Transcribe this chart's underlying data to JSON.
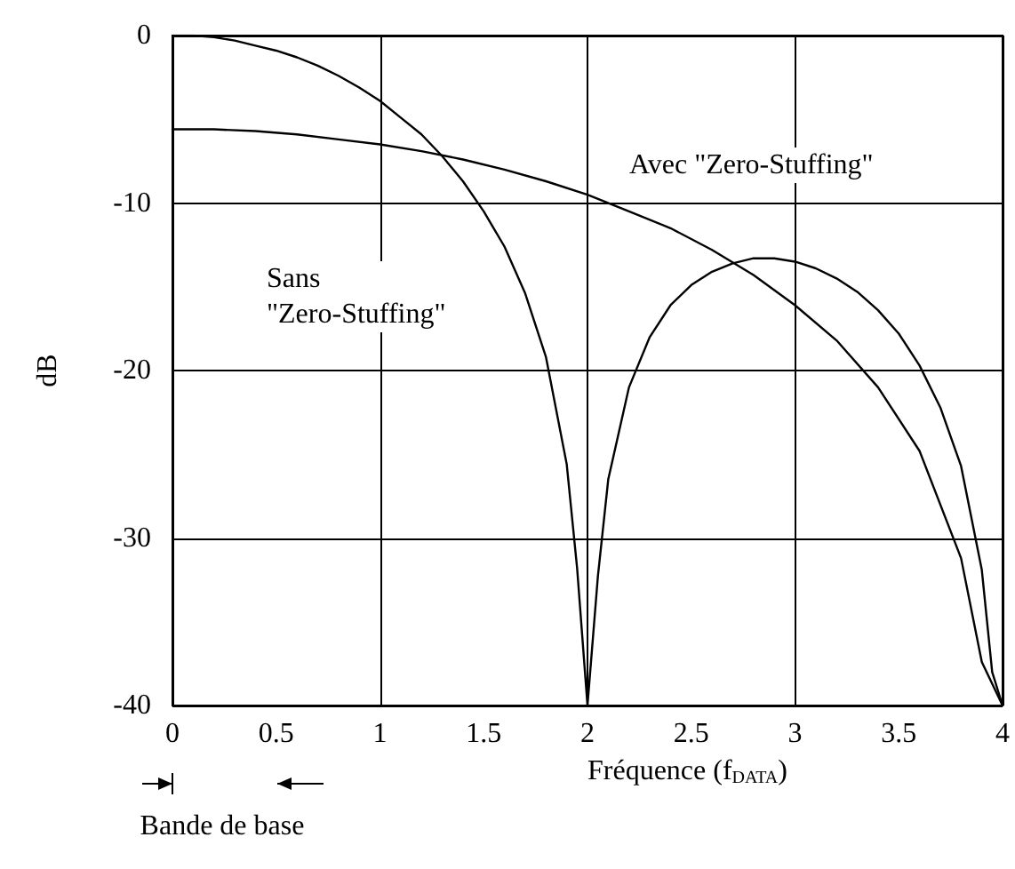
{
  "chart_data": {
    "type": "line",
    "xlabel": "Fréquence (f$_{DATA}$)",
    "ylabel": "dB",
    "xlim": [
      0,
      4
    ],
    "ylim": [
      -40,
      0
    ],
    "xticks": [
      0,
      0.5,
      1,
      1.5,
      2,
      2.5,
      3,
      3.5,
      4
    ],
    "yticks": [
      0,
      -10,
      -20,
      -30,
      -40
    ],
    "grid": true,
    "marker": "none",
    "line_style": "solid",
    "series": [
      {
        "color": "#000000",
        "x": [
          0,
          0.1,
          0.2,
          0.3,
          0.4,
          0.5,
          0.6,
          0.7,
          0.8,
          0.9,
          1,
          1.1,
          1.2,
          1.3,
          1.4,
          1.5,
          1.6,
          1.7,
          1.8,
          1.9,
          1.95,
          2,
          2.05,
          2.1,
          2.2,
          2.3,
          2.4,
          2.5,
          2.6,
          2.7,
          2.8,
          2.9,
          3,
          3.1,
          3.2,
          3.3,
          3.4,
          3.5,
          3.6,
          3.7,
          3.8,
          3.9,
          3.95,
          4
        ],
        "values": [
          0,
          0,
          -0.1,
          -0.3,
          -0.6,
          -0.9,
          -1.3,
          -1.8,
          -2.4,
          -3.1,
          -3.9,
          -4.9,
          -5.9,
          -7.2,
          -8.7,
          -10.5,
          -12.6,
          -15.4,
          -19.2,
          -25.6,
          -31.8,
          -40,
          -32.3,
          -26.5,
          -21,
          -18,
          -16.1,
          -14.9,
          -14.1,
          -13.6,
          -13.3,
          -13.3,
          -13.5,
          -13.9,
          -14.5,
          -15.3,
          -16.4,
          -17.8,
          -19.7,
          -22.2,
          -25.7,
          -31.9,
          -38,
          -40
        ]
      },
      {
        "color": "#000000",
        "x": [
          0,
          0.2,
          0.4,
          0.6,
          0.8,
          1,
          1.2,
          1.4,
          1.6,
          1.8,
          2,
          2.2,
          2.4,
          2.6,
          2.8,
          3,
          3.2,
          3.4,
          3.6,
          3.8,
          3.9,
          4
        ],
        "values": [
          -5.6,
          -5.6,
          -5.7,
          -5.9,
          -6.2,
          -6.5,
          -6.9,
          -7.4,
          -8,
          -8.7,
          -9.5,
          -10.5,
          -11.5,
          -12.8,
          -14.3,
          -16.1,
          -18.2,
          -21,
          -24.8,
          -31.2,
          -37.4,
          -40
        ]
      }
    ],
    "annotations": [
      "Avec \"Zero-Stuffing\"",
      "Sans\n\"Zero-Stuffing\"",
      "Bande de base"
    ]
  }
}
